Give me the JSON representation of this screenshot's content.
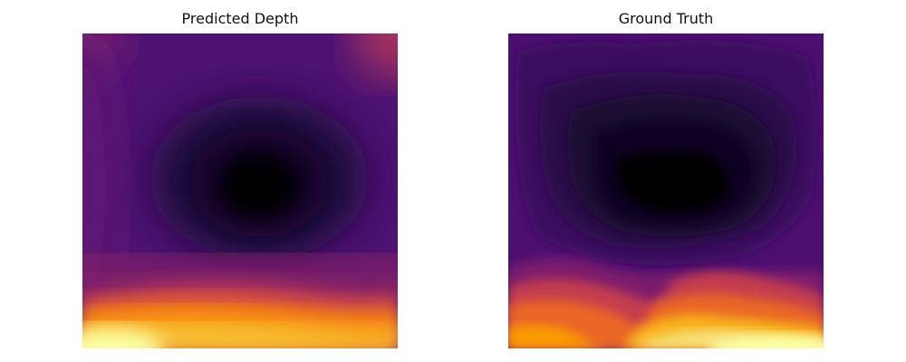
{
  "panels": [
    {
      "title": "Predicted Depth",
      "colormap": "inferno"
    },
    {
      "title": "Ground Truth",
      "colormap": "inferno"
    }
  ],
  "colors": {
    "background": "#ffffff",
    "colormap_stops": [
      "#000004",
      "#1b0c41",
      "#4a0c6b",
      "#781c6d",
      "#a52c60",
      "#cf4446",
      "#ed6925",
      "#fb9b06",
      "#f7d13d",
      "#fcffa4"
    ]
  }
}
